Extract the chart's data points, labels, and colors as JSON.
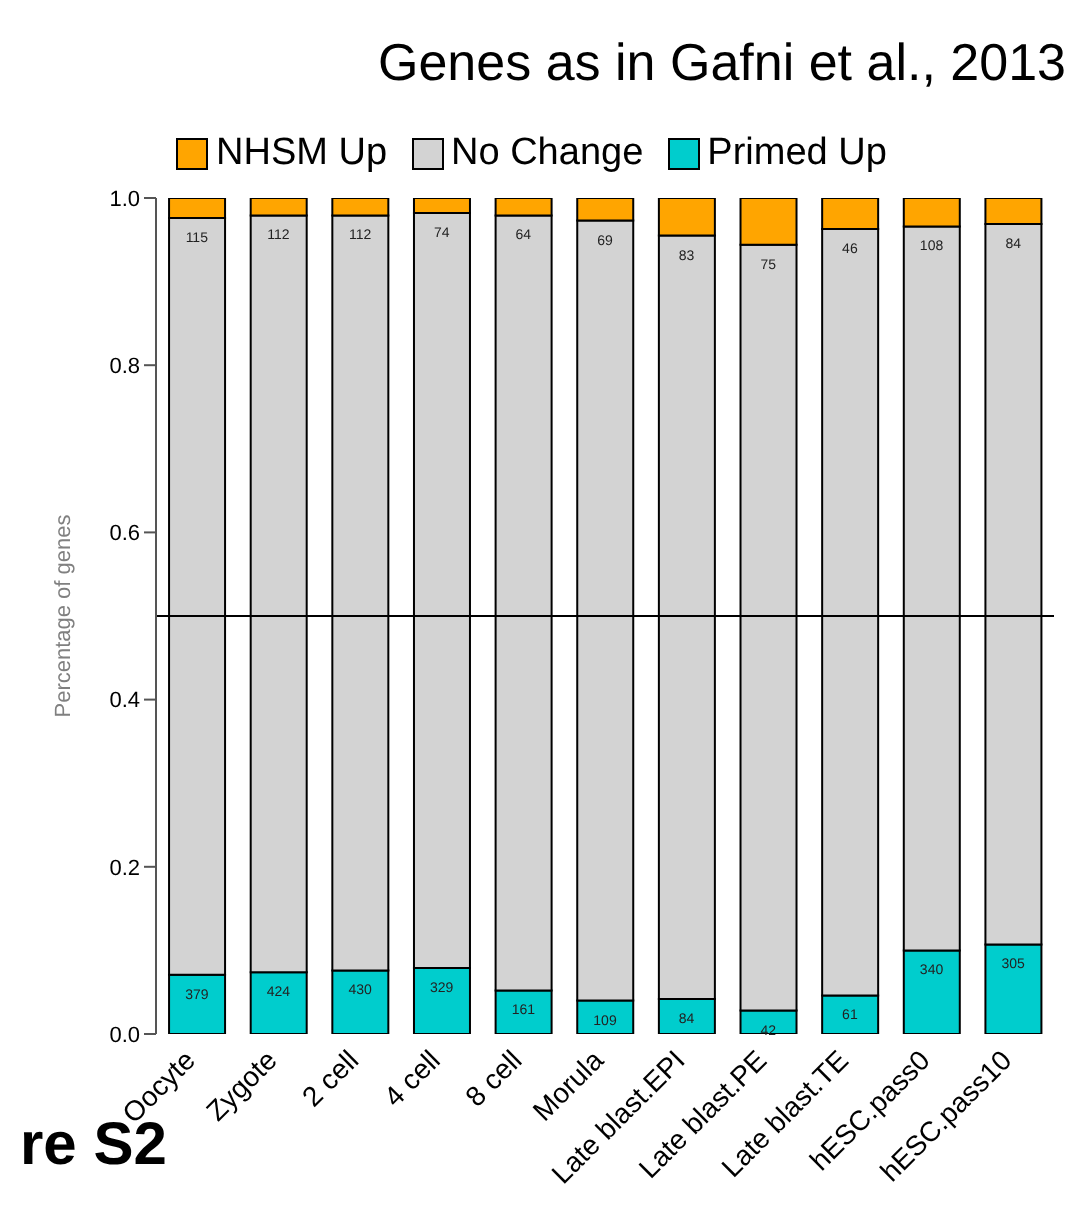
{
  "chart_data": {
    "type": "bar",
    "stacked": true,
    "title": "Genes as in Gafni et al., 2013",
    "ylabel": "Percentage of genes",
    "categories": [
      "Oocyte",
      "Zygote",
      "2 cell",
      "4 cell",
      "8 cell",
      "Morula",
      "Late blast.EPI",
      "Late blast.PE",
      "Late blast.TE",
      "hESC.pass0",
      "hESC.pass10"
    ],
    "series": [
      {
        "name": "Primed Up",
        "color": "#00cdcd",
        "values": [
          0.071,
          0.074,
          0.076,
          0.079,
          0.052,
          0.04,
          0.042,
          0.028,
          0.046,
          0.1,
          0.107
        ]
      },
      {
        "name": "No Change",
        "color": "#d3d3d3",
        "values": [
          0.905,
          0.905,
          0.903,
          0.903,
          0.927,
          0.933,
          0.913,
          0.916,
          0.917,
          0.866,
          0.862
        ]
      },
      {
        "name": "NHSM Up",
        "color": "#ffa500",
        "values": [
          0.024,
          0.021,
          0.021,
          0.018,
          0.021,
          0.027,
          0.045,
          0.056,
          0.037,
          0.034,
          0.031
        ]
      }
    ],
    "ylim": [
      0,
      1
    ],
    "yticks": [
      {
        "value": 0,
        "label": "0.0"
      },
      0.2,
      0.4,
      0.6,
      0.8,
      {
        "value": 1,
        "label": "1.0"
      }
    ],
    "ref_lines": [
      {
        "axis": "y",
        "value": 0.5,
        "color": "#000000"
      }
    ],
    "legend": "top",
    "annotations": [
      {
        "text": "379",
        "x": "Oocyte",
        "y": 0.071
      },
      {
        "text": "424",
        "x": "Zygote",
        "y": 0.074
      },
      {
        "text": "430",
        "x": "2 cell",
        "y": 0.076
      },
      {
        "text": "329",
        "x": "4 cell",
        "y": 0.079
      },
      {
        "text": "161",
        "x": "8 cell",
        "y": 0.052
      },
      {
        "text": "109",
        "x": "Morula",
        "y": 0.04
      },
      {
        "text": "84",
        "x": "Late blast.EPI",
        "y": 0.042
      },
      {
        "text": "42",
        "x": "Late blast.PE",
        "y": 0.028
      },
      {
        "text": "61",
        "x": "Late blast.TE",
        "y": 0.046
      },
      {
        "text": "340",
        "x": "hESC.pass0",
        "y": 0.1
      },
      {
        "text": "305",
        "x": "hESC.pass10",
        "y": 0.107
      },
      {
        "text": "115",
        "x": "Oocyte",
        "y": 0.976
      },
      {
        "text": "112",
        "x": "Zygote",
        "y": 0.979
      },
      {
        "text": "112",
        "x": "2 cell",
        "y": 0.979
      },
      {
        "text": "74",
        "x": "4 cell",
        "y": 0.982
      },
      {
        "text": "64",
        "x": "8 cell",
        "y": 0.979
      },
      {
        "text": "69",
        "x": "Morula",
        "y": 0.973
      },
      {
        "text": "83",
        "x": "Late blast.EPI",
        "y": 0.955
      },
      {
        "text": "75",
        "x": "Late blast.PE",
        "y": 0.944
      },
      {
        "text": "46",
        "x": "Late blast.TE",
        "y": 0.963
      },
      {
        "text": "108",
        "x": "hESC.pass0",
        "y": 0.966
      },
      {
        "text": "84",
        "x": "hESC.pass10",
        "y": 0.969
      },
      "re S2"
    ]
  }
}
